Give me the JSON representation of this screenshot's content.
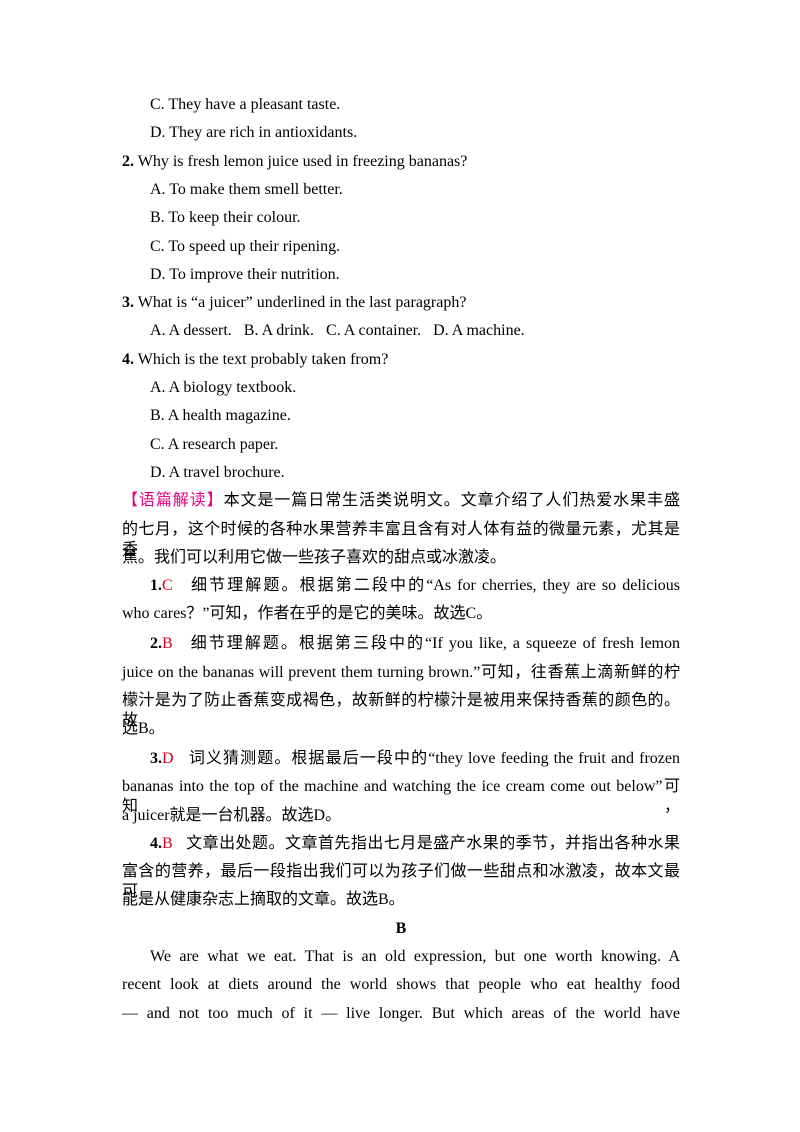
{
  "q1_options": [
    "C. They have a pleasant taste.",
    "D. They are rich in antioxidants."
  ],
  "questions": [
    {
      "number": "2.",
      "stem": "Why is fresh lemon juice used in freezing bananas?",
      "options": [
        "A. To make them smell better.",
        "B. To keep their colour.",
        "C. To speed up their ripening.",
        "D. To improve their nutrition."
      ]
    },
    {
      "number": "3.",
      "stem": "What is “a juicer” underlined in the last paragraph?",
      "options": [
        "A. A dessert.",
        "B. A drink.",
        "C. A container.",
        "D. A machine."
      ]
    },
    {
      "number": "4.",
      "stem": "Which is the text probably taken from?",
      "options": [
        "A. A biology textbook.",
        "B. A health magazine.",
        "C. A research paper.",
        "D. A travel brochure."
      ]
    }
  ],
  "analysis": {
    "label": "【语篇解读】",
    "lines": [
      "本文是一篇日常生活类说明文。文章介绍了人们热爱水果丰盛",
      "的七月，这个时候的各种水果营养丰富且含有对人体有益的微量元素，尤其是香",
      "蕉。我们可以利用它做一些孩子喜欢的甜点或冰激凌。"
    ]
  },
  "answers": [
    {
      "number": "1.",
      "answer": "C",
      "lines": [
        "细节理解题。根据第二段中的“As for cherries, they are so delicious",
        "who cares？”可知，作者在乎的是它的美味。故选C。"
      ]
    },
    {
      "number": "2.",
      "answer": "B",
      "lines": [
        "细节理解题。根据第三段中的“If you like, a squeeze of fresh lemon",
        "juice on the bananas will prevent them turning brown.”可知，往香蕉上滴新鲜的柠",
        "檬汁是为了防止香蕉变成褐色，故新鲜的柠檬汁是被用来保持香蕉的颜色的。故",
        "选B。"
      ]
    },
    {
      "number": "3.",
      "answer": "D",
      "lines": [
        "词义猜测题。根据最后一段中的“they love feeding the fruit and frozen",
        "bananas into the top of the machine and watching the ice cream come out below”可知，",
        "a juicer就是一台机器。故选D。"
      ]
    },
    {
      "number": "4.",
      "answer": "B",
      "lines": [
        "文章出处题。文章首先指出七月是盛产水果的季节，并指出各种水果",
        "富含的营养，最后一段指出我们可以为孩子们做一些甜点和冰激凌，故本文最可",
        "能是从健康杂志上摘取的文章。故选B。"
      ]
    }
  ],
  "section": "B",
  "passage": [
    "We are what we eat. That is an old expression, but one worth knowing. A",
    "recent look at diets around the world shows that people who eat healthy food",
    "— and not too much of it — live longer. But which areas of the world have"
  ]
}
